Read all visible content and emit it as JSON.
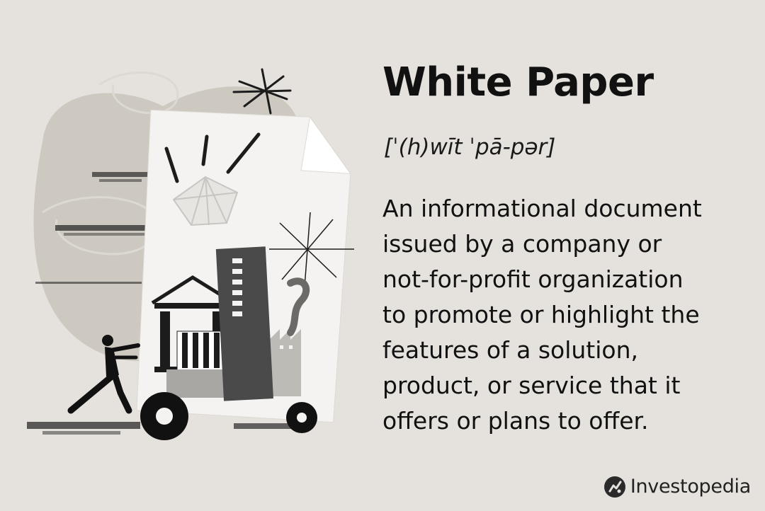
{
  "term": {
    "title": "White Paper",
    "pronunciation": "[ˈ(h)wīt ˈpā-pər]"
  },
  "definition": {
    "lines": [
      "An informational document",
      "issued by a company or",
      "not-for-profit organization",
      "to promote or highlight the",
      "features of a solution,",
      "product, or service that it",
      "offers or plans to offer."
    ]
  },
  "brand": {
    "name": "Investopedia",
    "icon": "investopedia-logo-icon"
  },
  "colors": {
    "background": "#e5e2dd",
    "text": "#111111",
    "paper": "#f3f2f0",
    "blob": "#cdc9c0",
    "dark": "#1c1c1c",
    "building": "#4a4a4a"
  },
  "illustration": {
    "subject": "person-pushing-paper-cart-icon"
  }
}
